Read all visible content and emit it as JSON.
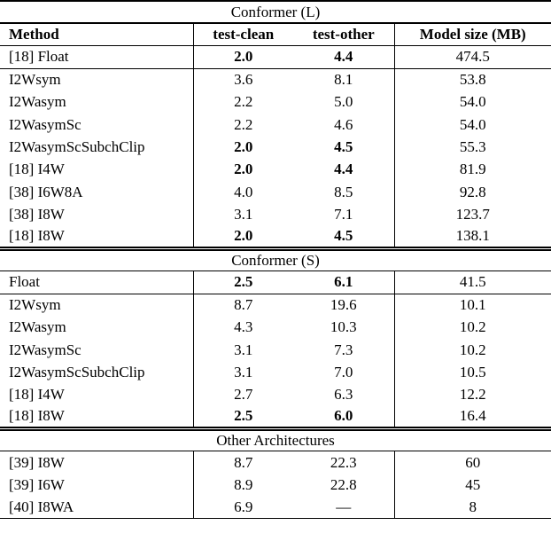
{
  "table": {
    "header": {
      "method": "Method",
      "test_clean": "test-clean",
      "test_other": "test-other",
      "model_size": "Model size (MB)"
    },
    "sections": [
      {
        "title": "Conformer (L)",
        "groups": [
          [
            {
              "method": "[18] Float",
              "test_clean": "2.0",
              "test_other": "4.4",
              "model_size": "474.5",
              "bold_clean": true,
              "bold_other": true
            }
          ],
          [
            {
              "method": "I2Wsym",
              "test_clean": "3.6",
              "test_other": "8.1",
              "model_size": "53.8"
            },
            {
              "method": "I2Wasym",
              "test_clean": "2.2",
              "test_other": "5.0",
              "model_size": "54.0"
            },
            {
              "method": "I2WasymSc",
              "test_clean": "2.2",
              "test_other": "4.6",
              "model_size": "54.0"
            },
            {
              "method": "I2WasymScSubchClip",
              "test_clean": "2.0",
              "test_other": "4.5",
              "model_size": "55.3",
              "bold_clean": true,
              "bold_other": true
            },
            {
              "method": "[18] I4W",
              "test_clean": "2.0",
              "test_other": "4.4",
              "model_size": "81.9",
              "bold_clean": true,
              "bold_other": true
            },
            {
              "method": "[38] I6W8A",
              "test_clean": "4.0",
              "test_other": "8.5",
              "model_size": "92.8"
            },
            {
              "method": "[38] I8W",
              "test_clean": "3.1",
              "test_other": "7.1",
              "model_size": "123.7"
            },
            {
              "method": "[18] I8W",
              "test_clean": "2.0",
              "test_other": "4.5",
              "model_size": "138.1",
              "bold_clean": true,
              "bold_other": true
            }
          ]
        ]
      },
      {
        "title": "Conformer (S)",
        "groups": [
          [
            {
              "method": "Float",
              "test_clean": "2.5",
              "test_other": "6.1",
              "model_size": "41.5",
              "bold_clean": true,
              "bold_other": true
            }
          ],
          [
            {
              "method": "I2Wsym",
              "test_clean": "8.7",
              "test_other": "19.6",
              "model_size": "10.1"
            },
            {
              "method": "I2Wasym",
              "test_clean": "4.3",
              "test_other": "10.3",
              "model_size": "10.2"
            },
            {
              "method": "I2WasymSc",
              "test_clean": "3.1",
              "test_other": "7.3",
              "model_size": "10.2"
            },
            {
              "method": "I2WasymScSubchClip",
              "test_clean": "3.1",
              "test_other": "7.0",
              "model_size": "10.5"
            },
            {
              "method": "[18] I4W",
              "test_clean": "2.7",
              "test_other": "6.3",
              "model_size": "12.2"
            },
            {
              "method": "[18] I8W",
              "test_clean": "2.5",
              "test_other": "6.0",
              "model_size": "16.4",
              "bold_clean": true,
              "bold_other": true
            }
          ]
        ]
      },
      {
        "title": "Other Architectures",
        "groups": [
          [
            {
              "method": "[39] I8W",
              "test_clean": "8.7",
              "test_other": "22.3",
              "model_size": "60"
            },
            {
              "method": "[39] I6W",
              "test_clean": "8.9",
              "test_other": "22.8",
              "model_size": "45"
            },
            {
              "method": "[40] I8WA",
              "test_clean": "6.9",
              "test_other": "—",
              "model_size": "8"
            }
          ]
        ]
      }
    ]
  }
}
